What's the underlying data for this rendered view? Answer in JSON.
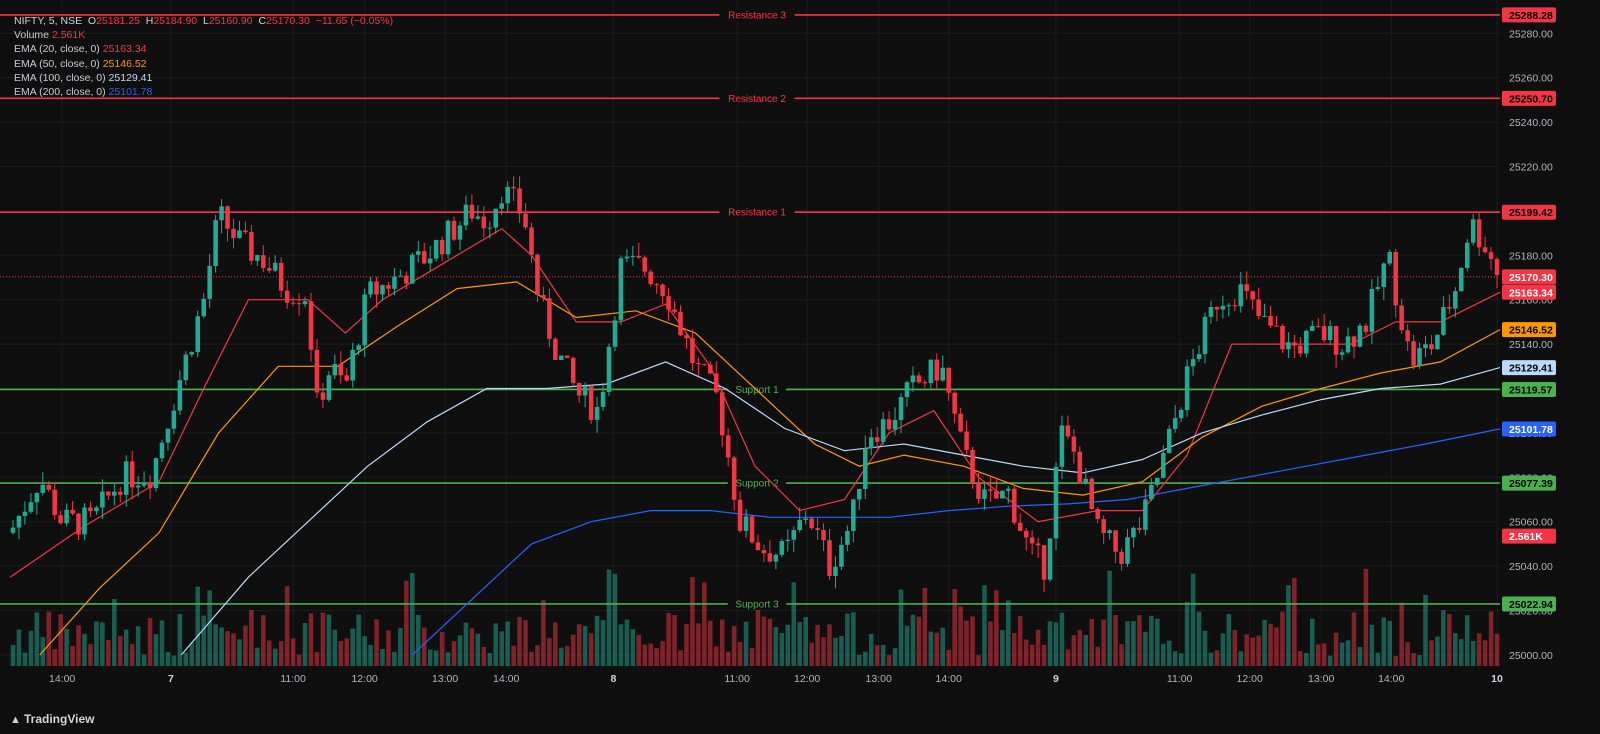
{
  "header": {
    "symbol": "NIFTY, 5, NSE",
    "open_label": "O",
    "open": "25181.25",
    "high_label": "H",
    "high": "25184.90",
    "low_label": "L",
    "low": "25160.90",
    "close_label": "C",
    "close": "25170.30",
    "change": "−11.65 (−0.05%)"
  },
  "legend": [
    {
      "label": "Volume",
      "value": "2.561K",
      "color": "#f23645"
    },
    {
      "label": "EMA (20, close, 0)",
      "value": "25163.34",
      "color": "#f23645"
    },
    {
      "label": "EMA (50, close, 0)",
      "value": "25146.52",
      "color": "#ff9800"
    },
    {
      "label": "EMA (100, close, 0)",
      "value": "25129.41",
      "color": "#bbd9fb"
    },
    {
      "label": "EMA (200, close, 0)",
      "value": "25101.78",
      "color": "#2962ff"
    }
  ],
  "brand": {
    "name": "TradingView",
    "logo_icon": "tradingview-logo-icon"
  },
  "chart_data": {
    "type": "candlestick",
    "ylim": [
      24995,
      25295
    ],
    "y_ticks": [
      25000,
      25020,
      25040,
      25060,
      25080,
      25100,
      25120,
      25140,
      25160,
      25180,
      25200,
      25220,
      25240,
      25260,
      25280
    ],
    "x_ticks": [
      {
        "label": "14:00",
        "pos": 0.035
      },
      {
        "label": "7",
        "pos": 0.108
      },
      {
        "label": "11:00",
        "pos": 0.19
      },
      {
        "label": "12:00",
        "pos": 0.238
      },
      {
        "label": "13:00",
        "pos": 0.292
      },
      {
        "label": "14:00",
        "pos": 0.333
      },
      {
        "label": "8",
        "pos": 0.405
      },
      {
        "label": "11:00",
        "pos": 0.488
      },
      {
        "label": "12:00",
        "pos": 0.535
      },
      {
        "label": "13:00",
        "pos": 0.583
      },
      {
        "label": "14:00",
        "pos": 0.63
      },
      {
        "label": "9",
        "pos": 0.702
      },
      {
        "label": "11:00",
        "pos": 0.785
      },
      {
        "label": "12:00",
        "pos": 0.832
      },
      {
        "label": "13:00",
        "pos": 0.88
      },
      {
        "label": "14:00",
        "pos": 0.927
      },
      {
        "label": "10",
        "pos": 0.998
      }
    ],
    "levels": [
      {
        "name": "Resistance 3",
        "value": 25288.28,
        "label": "25288.28",
        "color": "#f23645"
      },
      {
        "name": "Resistance 2",
        "value": 25250.7,
        "label": "25250.70",
        "color": "#f23645"
      },
      {
        "name": "Resistance 1",
        "value": 25199.42,
        "label": "25199.42",
        "color": "#f23645"
      },
      {
        "name": "Support 1",
        "value": 25119.57,
        "label": "25119.57",
        "color": "#4caf50"
      },
      {
        "name": "Support 2",
        "value": 25077.39,
        "label": "25077.39",
        "color": "#4caf50"
      },
      {
        "name": "Support 3",
        "value": 25022.94,
        "label": "25022.94",
        "color": "#4caf50"
      }
    ],
    "price_labels": [
      {
        "value": 25170.3,
        "label": "25170.30",
        "color": "#f23645"
      },
      {
        "value": 25163.34,
        "label": "25163.34",
        "color": "#f23645"
      },
      {
        "value": 25146.52,
        "label": "25146.52",
        "color": "#ff9800"
      },
      {
        "value": 25129.41,
        "label": "25129.41",
        "color": "#bbd9fb"
      },
      {
        "value": 25101.78,
        "label": "25101.78",
        "color": "#2962ff"
      },
      {
        "value": 25053.5,
        "label": "2.561K",
        "color": "#f23645"
      }
    ],
    "last_price": 25170.3,
    "close_path": [
      [
        0,
        25055
      ],
      [
        0.02,
        25080
      ],
      [
        0.035,
        25060
      ],
      [
        0.055,
        25060
      ],
      [
        0.075,
        25080
      ],
      [
        0.095,
        25082
      ],
      [
        0.112,
        25120
      ],
      [
        0.13,
        25160
      ],
      [
        0.14,
        25198
      ],
      [
        0.155,
        25185
      ],
      [
        0.17,
        25178
      ],
      [
        0.185,
        25165
      ],
      [
        0.2,
        25162
      ],
      [
        0.205,
        25110
      ],
      [
        0.215,
        25130
      ],
      [
        0.225,
        25120
      ],
      [
        0.24,
        25162
      ],
      [
        0.26,
        25170
      ],
      [
        0.28,
        25180
      ],
      [
        0.295,
        25190
      ],
      [
        0.31,
        25200
      ],
      [
        0.32,
        25195
      ],
      [
        0.33,
        25210
      ],
      [
        0.345,
        25198
      ],
      [
        0.355,
        25160
      ],
      [
        0.365,
        25140
      ],
      [
        0.38,
        25118
      ],
      [
        0.395,
        25110
      ],
      [
        0.41,
        25175
      ],
      [
        0.425,
        25175
      ],
      [
        0.44,
        25165
      ],
      [
        0.46,
        25130
      ],
      [
        0.475,
        25115
      ],
      [
        0.49,
        25060
      ],
      [
        0.505,
        25048
      ],
      [
        0.52,
        25045
      ],
      [
        0.535,
        25065
      ],
      [
        0.55,
        25040
      ],
      [
        0.565,
        25060
      ],
      [
        0.575,
        25100
      ],
      [
        0.59,
        25105
      ],
      [
        0.605,
        25120
      ],
      [
        0.625,
        25130
      ],
      [
        0.64,
        25090
      ],
      [
        0.655,
        25068
      ],
      [
        0.67,
        25073
      ],
      [
        0.685,
        25045
      ],
      [
        0.695,
        25040
      ],
      [
        0.705,
        25100
      ],
      [
        0.715,
        25090
      ],
      [
        0.73,
        25055
      ],
      [
        0.745,
        25045
      ],
      [
        0.76,
        25060
      ],
      [
        0.775,
        25090
      ],
      [
        0.79,
        25125
      ],
      [
        0.81,
        25160
      ],
      [
        0.825,
        25165
      ],
      [
        0.84,
        25150
      ],
      [
        0.86,
        25138
      ],
      [
        0.88,
        25145
      ],
      [
        0.895,
        25140
      ],
      [
        0.91,
        25150
      ],
      [
        0.925,
        25180
      ],
      [
        0.94,
        25132
      ],
      [
        0.955,
        25140
      ],
      [
        0.97,
        25165
      ],
      [
        0.98,
        25195
      ],
      [
        0.99,
        25185
      ],
      [
        1.0,
        25170
      ]
    ],
    "ema_series": [
      {
        "period": 20,
        "color": "#f23645",
        "points": [
          [
            0,
            25035
          ],
          [
            0.05,
            25058
          ],
          [
            0.1,
            25078
          ],
          [
            0.13,
            25120
          ],
          [
            0.16,
            25160
          ],
          [
            0.2,
            25160
          ],
          [
            0.225,
            25145
          ],
          [
            0.25,
            25160
          ],
          [
            0.3,
            25180
          ],
          [
            0.33,
            25192
          ],
          [
            0.35,
            25180
          ],
          [
            0.38,
            25150
          ],
          [
            0.41,
            25150
          ],
          [
            0.44,
            25158
          ],
          [
            0.47,
            25130
          ],
          [
            0.5,
            25085
          ],
          [
            0.53,
            25065
          ],
          [
            0.56,
            25070
          ],
          [
            0.59,
            25100
          ],
          [
            0.62,
            25110
          ],
          [
            0.65,
            25080
          ],
          [
            0.69,
            25060
          ],
          [
            0.73,
            25065
          ],
          [
            0.76,
            25065
          ],
          [
            0.79,
            25090
          ],
          [
            0.82,
            25140
          ],
          [
            0.86,
            25140
          ],
          [
            0.9,
            25140
          ],
          [
            0.93,
            25150
          ],
          [
            0.96,
            25150
          ],
          [
            1.0,
            25163.34
          ]
        ]
      },
      {
        "period": 50,
        "color": "#ff9800",
        "points": [
          [
            0.02,
            25000
          ],
          [
            0.06,
            25030
          ],
          [
            0.1,
            25055
          ],
          [
            0.14,
            25100
          ],
          [
            0.18,
            25130
          ],
          [
            0.22,
            25130
          ],
          [
            0.26,
            25148
          ],
          [
            0.3,
            25165
          ],
          [
            0.34,
            25168
          ],
          [
            0.38,
            25152
          ],
          [
            0.42,
            25155
          ],
          [
            0.46,
            25145
          ],
          [
            0.5,
            25120
          ],
          [
            0.54,
            25095
          ],
          [
            0.57,
            25085
          ],
          [
            0.6,
            25090
          ],
          [
            0.64,
            25085
          ],
          [
            0.68,
            25075
          ],
          [
            0.72,
            25072
          ],
          [
            0.76,
            25078
          ],
          [
            0.8,
            25098
          ],
          [
            0.84,
            25112
          ],
          [
            0.88,
            25120
          ],
          [
            0.92,
            25127
          ],
          [
            0.96,
            25132
          ],
          [
            1.0,
            25146.52
          ]
        ]
      },
      {
        "period": 100,
        "color": "#bbd9fb",
        "points": [
          [
            0.115,
            25000
          ],
          [
            0.16,
            25035
          ],
          [
            0.2,
            25060
          ],
          [
            0.24,
            25085
          ],
          [
            0.28,
            25105
          ],
          [
            0.32,
            25120
          ],
          [
            0.36,
            25120
          ],
          [
            0.4,
            25122
          ],
          [
            0.44,
            25132
          ],
          [
            0.48,
            25120
          ],
          [
            0.52,
            25102
          ],
          [
            0.56,
            25092
          ],
          [
            0.6,
            25095
          ],
          [
            0.64,
            25090
          ],
          [
            0.68,
            25085
          ],
          [
            0.72,
            25082
          ],
          [
            0.76,
            25088
          ],
          [
            0.8,
            25100
          ],
          [
            0.84,
            25108
          ],
          [
            0.88,
            25115
          ],
          [
            0.92,
            25120
          ],
          [
            0.96,
            25122
          ],
          [
            1.0,
            25129.41
          ]
        ]
      },
      {
        "period": 200,
        "color": "#2962ff",
        "points": [
          [
            0.27,
            25000
          ],
          [
            0.31,
            25025
          ],
          [
            0.35,
            25050
          ],
          [
            0.39,
            25060
          ],
          [
            0.43,
            25065
          ],
          [
            0.47,
            25065
          ],
          [
            0.51,
            25062
          ],
          [
            0.55,
            25062
          ],
          [
            0.59,
            25062
          ],
          [
            0.63,
            25065
          ],
          [
            0.67,
            25067
          ],
          [
            0.71,
            25068
          ],
          [
            0.75,
            25070
          ],
          [
            0.79,
            25075
          ],
          [
            0.83,
            25080
          ],
          [
            0.87,
            25085
          ],
          [
            0.91,
            25090
          ],
          [
            0.95,
            25095
          ],
          [
            1.0,
            25101.78
          ]
        ]
      }
    ]
  }
}
